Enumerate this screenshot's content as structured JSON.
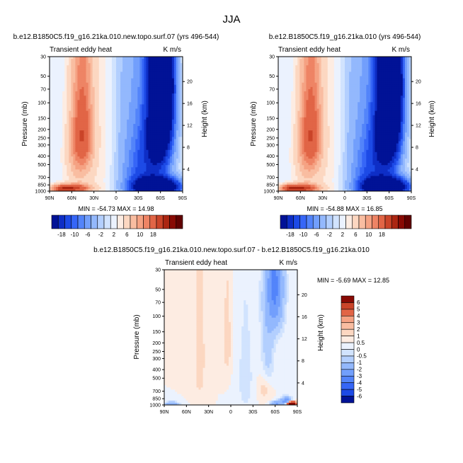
{
  "figure": {
    "title": "JJA"
  },
  "chart_data": [
    {
      "type": "heatmap",
      "title": "b.e12.B1850C5.f19_g16.21ka.010.new.topo.surf.07 (yrs 496-544)",
      "subtitle_left": "Transient eddy heat",
      "units": "K m/s",
      "xlabel": "",
      "ylabel": "Pressure (mb)",
      "ylabel_right": "Height (km)",
      "x_ticks": [
        "90N",
        "60N",
        "30N",
        "0",
        "30S",
        "60S",
        "90S"
      ],
      "y_ticks": [
        "30",
        "50",
        "70",
        "100",
        "150",
        "200",
        "250",
        "300",
        "400",
        "500",
        "700",
        "850",
        "1000"
      ],
      "height_ticks": [
        "20",
        "16",
        "12",
        "8",
        "4"
      ],
      "stats": "MIN = -54.73  MAX = 14.98",
      "min": -54.73,
      "max": 14.98,
      "features": [
        {
          "lat": 60,
          "p": 930,
          "sx": 16,
          "sy": 65,
          "amp": 16
        },
        {
          "lat": 46,
          "p": 210,
          "sx": 10,
          "sy": 180,
          "amp": 11
        },
        {
          "lat": 50,
          "p": 500,
          "sx": 12,
          "sy": 260,
          "amp": 4
        },
        {
          "lat": 75,
          "p": 950,
          "sx": 8,
          "sy": 70,
          "amp": 7
        },
        {
          "lat": -55,
          "p": 900,
          "sx": 18,
          "sy": 130,
          "amp": -52
        },
        {
          "lat": -62,
          "p": 40,
          "sx": 8,
          "sy": 60,
          "amp": -40
        },
        {
          "lat": -57,
          "p": 250,
          "sx": 12,
          "sy": 230,
          "amp": -26
        },
        {
          "lat": -62,
          "p": 110,
          "sx": 9,
          "sy": 110,
          "amp": -30
        },
        {
          "lat": -35,
          "p": 600,
          "sx": 14,
          "sy": 400,
          "amp": -9
        },
        {
          "lat": -12,
          "p": 500,
          "sx": 14,
          "sy": 700,
          "amp": -3
        },
        {
          "lat": 25,
          "p": 400,
          "sx": 30,
          "sy": 900,
          "amp": 1.5
        }
      ]
    },
    {
      "type": "heatmap",
      "title": "b.e12.B1850C5.f19_g16.21ka.010 (yrs 496-544)",
      "subtitle_left": "Transient eddy heat",
      "units": "K m/s",
      "xlabel": "",
      "ylabel": "Pressure (mb)",
      "ylabel_right": "Height (km)",
      "x_ticks": [
        "90N",
        "60N",
        "30N",
        "0",
        "30S",
        "60S",
        "90S"
      ],
      "y_ticks": [
        "30",
        "50",
        "70",
        "100",
        "150",
        "200",
        "250",
        "300",
        "400",
        "500",
        "700",
        "850",
        "1000"
      ],
      "height_ticks": [
        "20",
        "16",
        "12",
        "8",
        "4"
      ],
      "stats": "MIN = -54.88  MAX = 16.85",
      "min": -54.88,
      "max": 16.85,
      "features": [
        {
          "lat": 60,
          "p": 930,
          "sx": 16,
          "sy": 65,
          "amp": 17
        },
        {
          "lat": 46,
          "p": 210,
          "sx": 10,
          "sy": 180,
          "amp": 11
        },
        {
          "lat": 50,
          "p": 500,
          "sx": 12,
          "sy": 260,
          "amp": 4
        },
        {
          "lat": 75,
          "p": 950,
          "sx": 8,
          "sy": 70,
          "amp": 7
        },
        {
          "lat": -55,
          "p": 900,
          "sx": 18,
          "sy": 130,
          "amp": -52
        },
        {
          "lat": -62,
          "p": 40,
          "sx": 8,
          "sy": 60,
          "amp": -40
        },
        {
          "lat": -57,
          "p": 250,
          "sx": 12,
          "sy": 230,
          "amp": -27
        },
        {
          "lat": -62,
          "p": 110,
          "sx": 9,
          "sy": 110,
          "amp": -30
        },
        {
          "lat": -35,
          "p": 600,
          "sx": 14,
          "sy": 400,
          "amp": -9
        },
        {
          "lat": -12,
          "p": 500,
          "sx": 14,
          "sy": 700,
          "amp": -3
        },
        {
          "lat": 25,
          "p": 400,
          "sx": 30,
          "sy": 900,
          "amp": 1.5
        }
      ]
    },
    {
      "type": "heatmap",
      "title": "b.e12.B1850C5.f19_g16.21ka.010.new.topo.surf.07 - b.e12.B1850C5.f19_g16.21ka.010",
      "subtitle_left": "Transient eddy heat",
      "units": "K m/s",
      "xlabel": "",
      "ylabel": "Pressure (mb)",
      "ylabel_right": "Height (km)",
      "x_ticks": [
        "90N",
        "60N",
        "30N",
        "0",
        "30S",
        "60S",
        "90S"
      ],
      "y_ticks": [
        "30",
        "50",
        "70",
        "100",
        "150",
        "200",
        "250",
        "300",
        "400",
        "500",
        "700",
        "850",
        "1000"
      ],
      "height_ticks": [
        "20",
        "16",
        "12",
        "8",
        "4"
      ],
      "stats": "MIN = -5.69  MAX = 12.85",
      "min": -5.69,
      "max": 12.85,
      "features": [
        {
          "lat": -60,
          "p": 45,
          "sx": 7,
          "sy": 45,
          "amp": -2.5
        },
        {
          "lat": -58,
          "p": 70,
          "sx": 10,
          "sy": 80,
          "amp": -0.8
        },
        {
          "lat": 42,
          "p": 300,
          "sx": 5,
          "sy": 320,
          "amp": 0.5
        },
        {
          "lat": 5,
          "p": 200,
          "sx": 4,
          "sy": 150,
          "amp": 0.45
        },
        {
          "lat": -20,
          "p": 500,
          "sx": 8,
          "sy": 450,
          "amp": -0.4
        },
        {
          "lat": -50,
          "p": 250,
          "sx": 6,
          "sy": 200,
          "amp": -0.7
        },
        {
          "lat": -45,
          "p": 650,
          "sx": 6,
          "sy": 150,
          "amp": 0.4
        },
        {
          "lat": -82,
          "p": 970,
          "sx": 4,
          "sy": 40,
          "amp": 8
        },
        {
          "lat": -75,
          "p": 900,
          "sx": 5,
          "sy": 60,
          "amp": -3
        },
        {
          "lat": 80,
          "p": 980,
          "sx": 6,
          "sy": 40,
          "amp": -2
        },
        {
          "lat": -62,
          "p": 960,
          "sx": 5,
          "sy": 40,
          "amp": -2.2
        }
      ]
    }
  ],
  "colorbar_main": {
    "colors": [
      "#011296",
      "#0e2ec6",
      "#1d4ae6",
      "#3666f7",
      "#5384fa",
      "#729ffc",
      "#93b8fd",
      "#b3cffe",
      "#d1e3fe",
      "#ebf2fe",
      "#fdece2",
      "#fcd7c1",
      "#f9bda1",
      "#f5a283",
      "#ee8465",
      "#e16546",
      "#ca4429",
      "#ab2612",
      "#880a04",
      "#610101"
    ],
    "labels": [
      "-18",
      "-10",
      "-6",
      "-2",
      "2",
      "6",
      "10",
      "18"
    ],
    "levels": [
      -18,
      -14,
      -10,
      -8,
      -6,
      -4,
      -2,
      -1,
      0,
      1,
      2,
      4,
      6,
      8,
      10,
      14,
      18
    ]
  },
  "colorbar_diff": {
    "colors": [
      "#011296",
      "#1d4ae6",
      "#3666f7",
      "#5384fa",
      "#729ffc",
      "#93b8fd",
      "#b3cffe",
      "#d1e3fe",
      "#ebf2fe",
      "#fdece2",
      "#fcd7c1",
      "#f9bda1",
      "#f5a283",
      "#e16546",
      "#ca4429",
      "#880a04"
    ],
    "labels": [
      "6",
      "5",
      "4",
      "3",
      "2",
      "1",
      "0.5",
      "0",
      "-0.5",
      "-1",
      "-2",
      "-3",
      "-4",
      "-5",
      "-6"
    ],
    "levels": [
      -6,
      -5,
      -4,
      -3,
      -2,
      -1,
      -0.5,
      -0.25,
      0,
      0.25,
      0.5,
      1,
      2,
      3,
      4,
      5,
      6
    ]
  }
}
